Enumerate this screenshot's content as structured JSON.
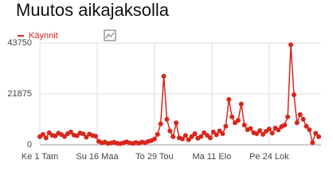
{
  "chart_data": {
    "type": "line",
    "title": "Muutos aikajaksolla",
    "x": [
      0,
      4,
      8,
      12,
      16,
      20,
      24,
      28,
      32,
      36,
      40,
      44,
      48,
      52,
      56,
      60,
      64,
      68,
      72,
      76,
      80,
      84,
      88,
      92,
      96,
      100,
      104,
      108,
      112,
      116,
      120,
      124,
      128,
      132,
      136,
      140,
      144,
      148,
      152,
      156,
      160,
      164,
      168,
      172,
      176,
      180,
      184,
      188,
      192,
      196,
      200,
      204,
      208,
      212,
      216,
      220,
      224,
      228,
      232,
      236,
      240,
      244,
      248,
      252,
      256,
      260,
      264,
      268,
      272,
      276,
      280,
      284,
      288,
      292,
      296,
      300,
      304,
      308,
      312,
      316,
      320,
      324,
      328,
      332,
      336,
      340,
      344,
      348,
      352,
      356,
      360
    ],
    "series": [
      {
        "name": "Käynnit",
        "color": "#d9261c",
        "values": [
          3500,
          4500,
          3000,
          5200,
          4100,
          3800,
          5000,
          4400,
          3600,
          4800,
          5500,
          4200,
          3900,
          5100,
          4700,
          3300,
          4600,
          4000,
          3700,
          1500,
          900,
          1200,
          600,
          800,
          1100,
          700,
          500,
          900,
          1300,
          800,
          600,
          1000,
          700,
          1200,
          900,
          1500,
          1800,
          2500,
          4500,
          9000,
          29500,
          11000,
          6000,
          3500,
          9500,
          3000,
          2500,
          4000,
          2200,
          3500,
          4800,
          2800,
          3600,
          5200,
          4100,
          3000,
          5500,
          4300,
          6000,
          4800,
          8000,
          19500,
          12000,
          9500,
          10500,
          17500,
          8500,
          6500,
          7000,
          5200,
          4800,
          6100,
          4500,
          5800,
          6800,
          5000,
          7200,
          6400,
          7800,
          8500,
          12000,
          43000,
          21500,
          9500,
          13000,
          11000,
          8000,
          6500,
          1000,
          5000,
          3500
        ]
      }
    ],
    "xlim": [
      0,
      363
    ],
    "xticks": [
      {
        "value": 0,
        "label": "Ke 1 Tam"
      },
      {
        "value": 74,
        "label": "Su 16 Maa"
      },
      {
        "value": 148,
        "label": "To 29 Tou"
      },
      {
        "value": 222,
        "label": "Ma 11 Elo"
      },
      {
        "value": 296,
        "label": "Pe 24 Lok"
      }
    ],
    "ylim": [
      0,
      43750
    ],
    "yticks": [
      0,
      21875,
      43750
    ],
    "grid": true
  }
}
